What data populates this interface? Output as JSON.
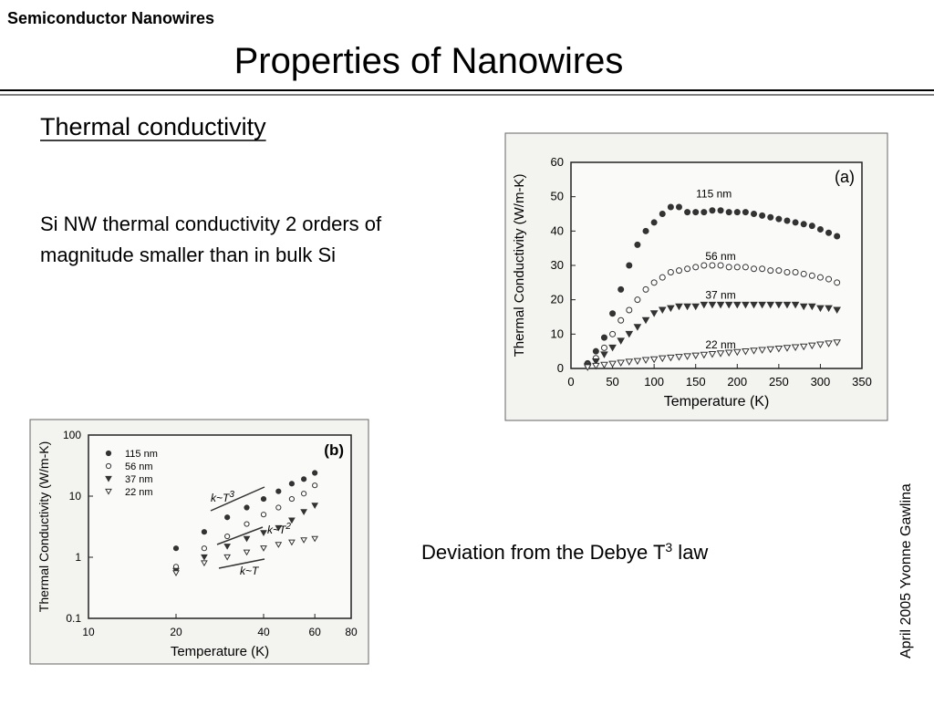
{
  "header": {
    "section": "Semiconductor Nanowires",
    "title": "Properties of Nanowires"
  },
  "body": {
    "heading": "Thermal conductivity",
    "lines": [
      "Si NW thermal conductivity 2 orders of",
      "magnitude smaller than in bulk Si"
    ],
    "note": {
      "text": "Deviation from the Debye T",
      "sup": "3",
      "tail": " law"
    }
  },
  "footer": {
    "author": "April 2005 Yvonne Gawlina"
  },
  "chart_data": [
    {
      "type": "scatter",
      "panel": "(a)",
      "x_label": "Temperature (K)",
      "y_label": "Thermal Conductivity (W/m-K)",
      "xlim": [
        0,
        350
      ],
      "xticks": [
        0,
        50,
        100,
        150,
        200,
        250,
        300,
        350
      ],
      "ylim": [
        0,
        60
      ],
      "yticks": [
        0,
        10,
        20,
        30,
        40,
        50,
        60
      ],
      "x": [
        20,
        30,
        40,
        50,
        60,
        70,
        80,
        90,
        100,
        110,
        120,
        130,
        140,
        150,
        160,
        170,
        180,
        190,
        200,
        210,
        220,
        230,
        240,
        250,
        260,
        270,
        280,
        290,
        300,
        310,
        320
      ],
      "series": [
        {
          "name": "115 nm",
          "color": "#333333",
          "marker": "filled-circle",
          "values": [
            1.5,
            5,
            9,
            16,
            23,
            30,
            36,
            40,
            42.5,
            45,
            47,
            47,
            45.5,
            45.5,
            45.5,
            46,
            46,
            45.5,
            45.5,
            45.5,
            45,
            44.5,
            44,
            43.5,
            43,
            42.5,
            42,
            41.5,
            40.5,
            39.5,
            38.5
          ]
        },
        {
          "name": "56 nm",
          "color": "#333333",
          "marker": "open-circle",
          "values": [
            1,
            3,
            6,
            10,
            14,
            17,
            20,
            23,
            25,
            26.5,
            28,
            28.5,
            29,
            29.5,
            30,
            30,
            30,
            29.5,
            29.5,
            29.5,
            29,
            29,
            28.5,
            28.5,
            28,
            28,
            27.5,
            27,
            26.5,
            26,
            25
          ]
        },
        {
          "name": "37 nm",
          "color": "#333333",
          "marker": "filled-triangle",
          "values": [
            0.7,
            2,
            4,
            6,
            8,
            10,
            12,
            14,
            16,
            17,
            17.5,
            18,
            18,
            18,
            18.5,
            18.5,
            18.5,
            18.5,
            18.5,
            18.5,
            18.5,
            18.5,
            18.5,
            18.5,
            18.5,
            18.5,
            18,
            18,
            17.5,
            17.5,
            17
          ]
        },
        {
          "name": "22 nm",
          "color": "#333333",
          "marker": "open-triangle",
          "values": [
            0.3,
            0.7,
            1,
            1.3,
            1.6,
            1.9,
            2.1,
            2.4,
            2.6,
            2.9,
            3.1,
            3.3,
            3.5,
            3.7,
            3.9,
            4.1,
            4.3,
            4.5,
            4.7,
            4.9,
            5.1,
            5.3,
            5.5,
            5.7,
            5.9,
            6.1,
            6.3,
            6.6,
            6.9,
            7.2,
            7.5
          ]
        }
      ]
    },
    {
      "type": "scatter",
      "panel": "(b)",
      "x_label": "Temperature (K)",
      "y_label": "Thermal Conductivity (W/m-K)",
      "xscale": "log",
      "yscale": "log",
      "legend": "top-left",
      "xlim": [
        10,
        80
      ],
      "xticks": [
        10,
        20,
        40,
        60,
        80
      ],
      "ylim": [
        0.1,
        100
      ],
      "yticks": [
        0.1,
        1,
        10,
        100
      ],
      "x": [
        20,
        25,
        30,
        35,
        40,
        45,
        50,
        55,
        60
      ],
      "series": [
        {
          "name": "115 nm",
          "color": "#333333",
          "marker": "filled-circle",
          "values": [
            1.4,
            2.6,
            4.5,
            6.5,
            9,
            12,
            16,
            19,
            24
          ]
        },
        {
          "name": "56 nm",
          "color": "#333333",
          "marker": "open-circle",
          "values": [
            0.7,
            1.4,
            2.2,
            3.5,
            5,
            6.5,
            9,
            11,
            15
          ]
        },
        {
          "name": "37 nm",
          "color": "#333333",
          "marker": "filled-triangle",
          "values": [
            0.6,
            1,
            1.5,
            2,
            2.5,
            3,
            4,
            5.5,
            7
          ]
        },
        {
          "name": "22 nm",
          "color": "#333333",
          "marker": "open-triangle",
          "values": [
            0.55,
            0.8,
            1,
            1.2,
            1.4,
            1.6,
            1.75,
            1.9,
            2
          ]
        }
      ],
      "annotations": [
        {
          "base": "k~T",
          "exp": "3"
        },
        {
          "base": "k~T",
          "exp": "2"
        },
        {
          "base": "k~T",
          "exp": ""
        }
      ]
    }
  ]
}
